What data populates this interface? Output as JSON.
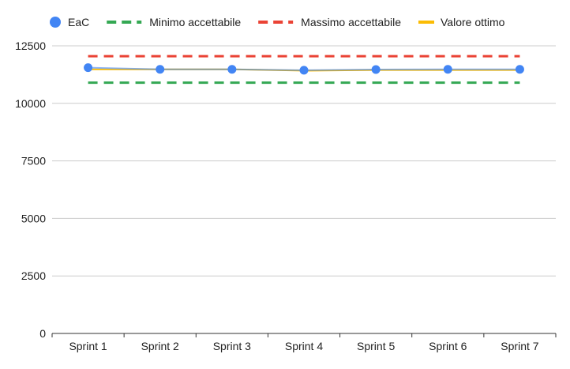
{
  "chart_data": {
    "type": "line",
    "title": "",
    "xlabel": "",
    "ylabel": "",
    "categories": [
      "Sprint 1",
      "Sprint 2",
      "Sprint 3",
      "Sprint 4",
      "Sprint 5",
      "Sprint 6",
      "Sprint 7"
    ],
    "ylim": [
      0,
      12500
    ],
    "yticks": [
      "0",
      "2500",
      "5000",
      "7500",
      "10000",
      "12500"
    ],
    "grid": true,
    "legend_position": "top-left",
    "series": [
      {
        "name": "EaC",
        "style": "line-with-markers",
        "color": "#4285F4",
        "values": [
          11550,
          11480,
          11480,
          11440,
          11470,
          11480,
          11480
        ]
      },
      {
        "name": "Minimo accettabile",
        "style": "dashed",
        "color": "#34A853",
        "values": [
          10900,
          10900,
          10900,
          10900,
          10900,
          10900,
          10900
        ]
      },
      {
        "name": "Massimo accettabile",
        "style": "dashed",
        "color": "#EA4335",
        "values": [
          12050,
          12050,
          12050,
          12050,
          12050,
          12050,
          12050
        ]
      },
      {
        "name": "Valore ottimo",
        "style": "solid",
        "color": "#FBBC04",
        "values": [
          11480,
          11480,
          11480,
          11420,
          11450,
          11450,
          11450
        ]
      }
    ]
  }
}
